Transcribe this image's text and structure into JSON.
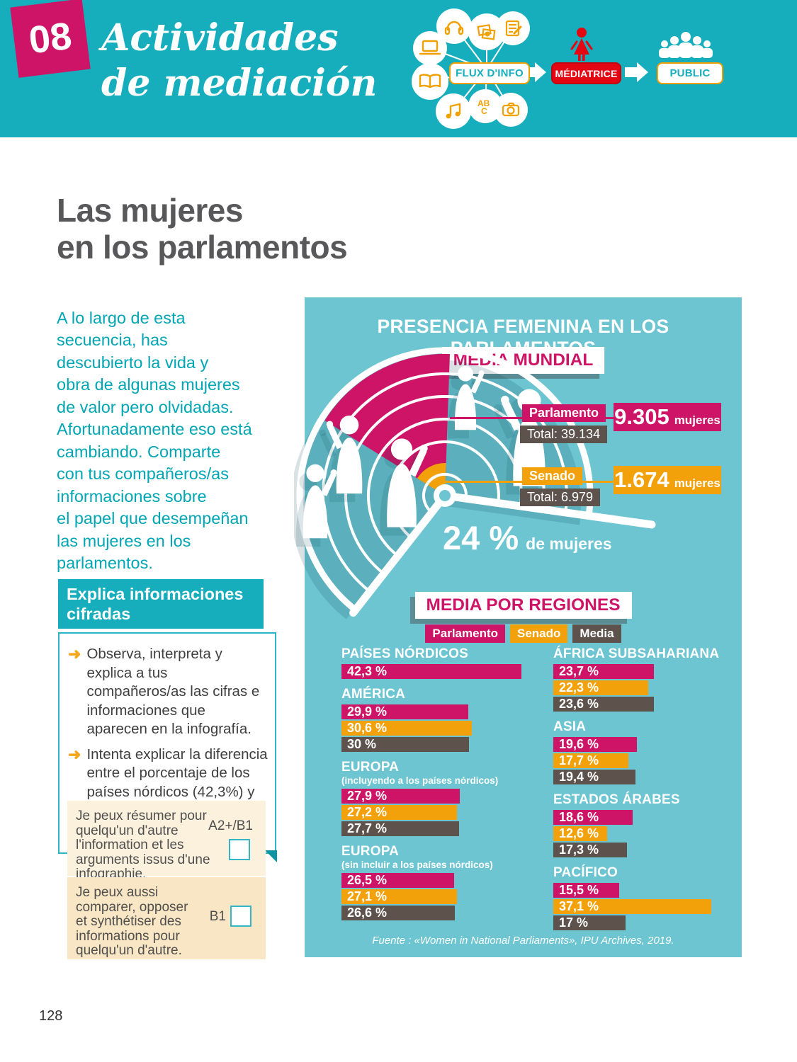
{
  "page_number": "128",
  "colors": {
    "teal_header": "#16aebc",
    "teal_panel": "#6cc5d1",
    "pink": "#ce1467",
    "orange": "#f2a10a",
    "gray": "#5d534c",
    "red": "#e30613"
  },
  "header": {
    "unit_number": "08",
    "title": "Actividades\nde mediación",
    "diagram": {
      "flux_label": "FLUX D'INFO",
      "mediatrice_label": "MÉDIATRICE",
      "public_label": "PUBLIC",
      "icons": [
        "laptop-icon",
        "headphones-icon",
        "photos-icon",
        "note-icon",
        "book-icon",
        "music-icon",
        "alphabet-icon",
        "camera-icon",
        "woman-icon",
        "crowd-icon"
      ]
    }
  },
  "main": {
    "title": "Las mujeres\nen los parlamentos",
    "intro": "A lo largo de esta\nsecuencia, has\ndescubierto la vida y\nobra de algunas mujeres\nde valor pero olvidadas.\nAfortunadamente eso está\ncambiando. Comparte\ncon tus compañeros/as\ninformaciones sobre\nel papel que desempeñan\nlas mujeres en los\nparlamentos.",
    "activity": {
      "heading": "Explica informaciones\ncifradas",
      "bullet_marker": "➜",
      "bullets": [
        "Observa, interpreta y explica a tus compañeros/as las cifras e informaciones que aparecen en la infografía.",
        "Intenta explicar la diferencia entre el porcentaje de los países nórdicos (42,3%) y el de Europa (26,5%). ¿A qué será debido?"
      ]
    },
    "self_assessment": [
      {
        "text": "Je peux résumer pour\nquelqu'un d'autre\nl'information et les\narguments issus d'une\ninfographie.",
        "level": "A2+/B1"
      },
      {
        "text": "Je peux aussi\ncomparer, opposer\net synthétiser des\ninformations pour\nquelqu'un d'autre.",
        "level": "B1"
      }
    ]
  },
  "infographic": {
    "title": "PRESENCIA FEMENINA EN LOS PARLAMENTOS",
    "world": {
      "heading": "MEDIA MUNDIAL",
      "parlamento": {
        "label": "Parlamento",
        "total": "Total: 39.134",
        "value": "9.305",
        "unit": "mujeres"
      },
      "senado": {
        "label": "Senado",
        "total": "Total: 6.979",
        "value": "1.674",
        "unit": "mujeres"
      },
      "percent": "24 %",
      "percent_unit": "de mujeres"
    },
    "regions_heading": "MEDIA POR REGIONES",
    "source": "Fuente : «Women in National Parliaments», IPU Archives, 2019."
  },
  "chart_data": [
    {
      "type": "pie",
      "subtype": "hemicycle",
      "title": "MEDIA MUNDIAL",
      "series": [
        {
          "name": "Parlamento",
          "women": 9305,
          "total": 39134
        },
        {
          "name": "Senado",
          "women": 1674,
          "total": 6979
        }
      ],
      "percent_women": 24,
      "annotation": "24 % de mujeres"
    },
    {
      "type": "bar",
      "title": "MEDIA POR REGIONES",
      "unit": "%",
      "legend": [
        {
          "name": "Parlamento",
          "color": "#ce1467"
        },
        {
          "name": "Senado",
          "color": "#f2a10a"
        },
        {
          "name": "Media",
          "color": "#5d534c"
        }
      ],
      "regions": [
        {
          "name": "PAÍSES NÓRDICOS",
          "column": "left",
          "bars": [
            {
              "series": "Parlamento",
              "value": 42.3,
              "label": "42,3 %"
            }
          ]
        },
        {
          "name": "AMÉRICA",
          "column": "left",
          "bars": [
            {
              "series": "Parlamento",
              "value": 29.9,
              "label": "29,9 %"
            },
            {
              "series": "Senado",
              "value": 30.6,
              "label": "30,6 %"
            },
            {
              "series": "Media",
              "value": 30,
              "label": "30 %"
            }
          ]
        },
        {
          "name": "EUROPA",
          "subtitle": "(incluyendo a los países nórdicos)",
          "column": "left",
          "bars": [
            {
              "series": "Parlamento",
              "value": 27.9,
              "label": "27,9 %"
            },
            {
              "series": "Senado",
              "value": 27.2,
              "label": "27,2 %"
            },
            {
              "series": "Media",
              "value": 27.7,
              "label": "27,7 %"
            }
          ]
        },
        {
          "name": "EUROPA",
          "subtitle": "(sin incluir a los países nórdicos)",
          "column": "left",
          "bars": [
            {
              "series": "Parlamento",
              "value": 26.5,
              "label": "26,5 %"
            },
            {
              "series": "Senado",
              "value": 27.1,
              "label": "27,1 %"
            },
            {
              "series": "Media",
              "value": 26.6,
              "label": "26,6 %"
            }
          ]
        },
        {
          "name": "ÁFRICA SUBSAHARIANA",
          "column": "right",
          "bars": [
            {
              "series": "Parlamento",
              "value": 23.7,
              "label": "23,7 %"
            },
            {
              "series": "Senado",
              "value": 22.3,
              "label": "22,3 %"
            },
            {
              "series": "Media",
              "value": 23.6,
              "label": "23,6 %"
            }
          ]
        },
        {
          "name": "ASIA",
          "column": "right",
          "bars": [
            {
              "series": "Parlamento",
              "value": 19.6,
              "label": "19,6 %"
            },
            {
              "series": "Senado",
              "value": 17.7,
              "label": "17,7 %"
            },
            {
              "series": "Media",
              "value": 19.4,
              "label": "19,4 %"
            }
          ]
        },
        {
          "name": "ESTADOS ÁRABES",
          "column": "right",
          "bars": [
            {
              "series": "Parlamento",
              "value": 18.6,
              "label": "18,6 %"
            },
            {
              "series": "Senado",
              "value": 12.6,
              "label": "12,6 %"
            },
            {
              "series": "Media",
              "value": 17.3,
              "label": "17,3 %"
            }
          ]
        },
        {
          "name": "PACÍFICO",
          "column": "right",
          "bars": [
            {
              "series": "Parlamento",
              "value": 15.5,
              "label": "15,5 %"
            },
            {
              "series": "Senado",
              "value": 37.1,
              "label": "37,1 %"
            },
            {
              "series": "Media",
              "value": 17,
              "label": "17 %"
            }
          ]
        }
      ]
    }
  ]
}
